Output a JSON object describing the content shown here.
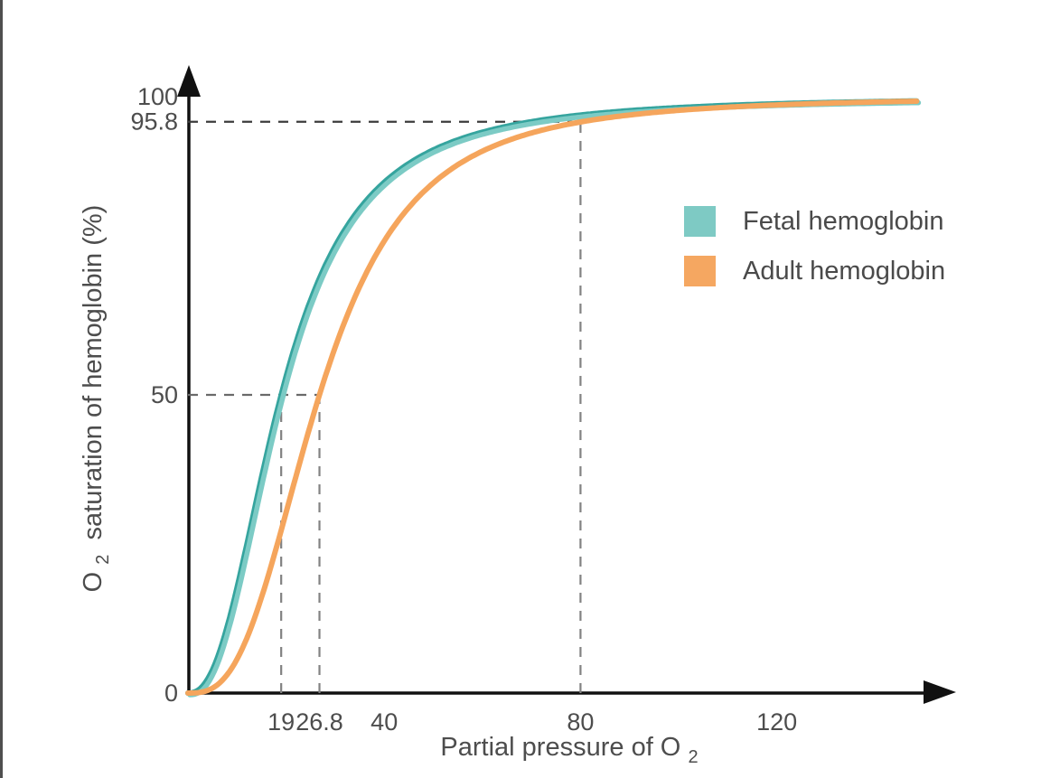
{
  "page": {
    "background": "#ffffff",
    "left_edge_color": "#4f4f4f"
  },
  "chart_data": {
    "type": "line",
    "xlabel": {
      "pre": "Partial pressure of O",
      "sub": "2"
    },
    "ylabel": {
      "pre": "O",
      "sub": "2",
      "post": " saturation of hemoglobin (%)"
    },
    "xlim": [
      0,
      157
    ],
    "ylim": [
      0,
      105
    ],
    "x_curve_max": 148.5,
    "grid": false,
    "axis_color": "#111111",
    "tick_label_color": "#4d4d4d",
    "axis_label_color": "#4d4d4d",
    "x_ticks": [
      {
        "value": 19,
        "label": "19"
      },
      {
        "value": 26.8,
        "label": "26.8"
      },
      {
        "value": 40,
        "label": "40"
      },
      {
        "value": 80,
        "label": "80"
      },
      {
        "value": 120,
        "label": "120"
      }
    ],
    "y_ticks": [
      {
        "value": 0,
        "label": "0"
      },
      {
        "value": 50,
        "label": "50"
      },
      {
        "value": 95.8,
        "label": "95.8"
      },
      {
        "value": 100,
        "label": "100"
      }
    ],
    "series": [
      {
        "name": "Fetal hemoglobin",
        "color": "#7ccbc5",
        "edge_color": "#35a49e",
        "p50": 19,
        "hill_n": 2.4,
        "points": [
          [
            0,
            0
          ],
          [
            5,
            3.9
          ],
          [
            10,
            17.6
          ],
          [
            15,
            36.2
          ],
          [
            19,
            50
          ],
          [
            25,
            65.9
          ],
          [
            30,
            75
          ],
          [
            40,
            85.7
          ],
          [
            50,
            91.1
          ],
          [
            60,
            94
          ],
          [
            80,
            96.9
          ],
          [
            100,
            98.2
          ],
          [
            120,
            98.8
          ],
          [
            148.5,
            99.3
          ]
        ]
      },
      {
        "name": "Adult hemoglobin",
        "color": "#f5a55c",
        "edge_color": null,
        "p50": 26.8,
        "hill_n": 2.85,
        "points": [
          [
            0,
            0
          ],
          [
            10,
            5.7
          ],
          [
            15,
            16.1
          ],
          [
            20,
            30.3
          ],
          [
            26.8,
            50
          ],
          [
            30,
            58
          ],
          [
            40,
            75.8
          ],
          [
            50,
            85.5
          ],
          [
            60,
            90.9
          ],
          [
            80,
            95.8
          ],
          [
            100,
            97.7
          ],
          [
            120,
            98.6
          ],
          [
            148.5,
            99.2
          ]
        ]
      }
    ],
    "guides": [
      {
        "orientation": "horizontal",
        "value": 95.8,
        "to_x": 80,
        "color": "#3c3c3c"
      },
      {
        "orientation": "vertical",
        "value": 80,
        "to_y": 95.8,
        "color": "#828282"
      },
      {
        "orientation": "horizontal",
        "value": 50,
        "to_x": 26.8,
        "color": "#6a6a6a"
      },
      {
        "orientation": "vertical",
        "value": 19,
        "to_y": 50,
        "color": "#828282"
      },
      {
        "orientation": "vertical",
        "value": 26.8,
        "to_y": 50,
        "color": "#828282"
      }
    ],
    "legend": {
      "position": "upper right",
      "text_color": "#4a4a4a",
      "items": [
        {
          "label": "Fetal hemoglobin",
          "color": "#7ecac4"
        },
        {
          "label": "Adult hemoglobin",
          "color": "#f5a761"
        }
      ]
    }
  }
}
